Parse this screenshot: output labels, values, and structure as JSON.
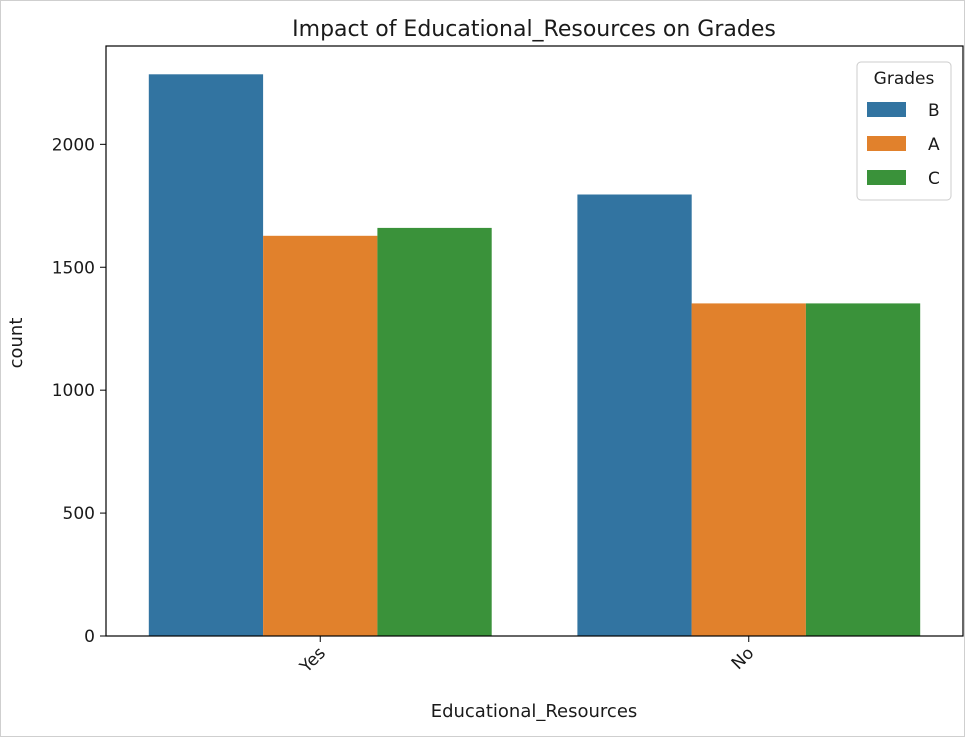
{
  "chart_data": {
    "type": "bar",
    "title": "Impact of Educational_Resources on Grades",
    "xlabel": "Educational_Resources",
    "ylabel": "count",
    "categories": [
      "Yes",
      "No"
    ],
    "series": [
      {
        "name": "B",
        "values": [
          2285,
          1796
        ],
        "color": "#3274a1"
      },
      {
        "name": "A",
        "values": [
          1628,
          1353
        ],
        "color": "#e1812c"
      },
      {
        "name": "C",
        "values": [
          1660,
          1353
        ],
        "color": "#3a923a"
      }
    ],
    "ylim": [
      0,
      2400
    ],
    "yticks": [
      0,
      500,
      1000,
      1500,
      2000
    ],
    "legend": {
      "title": "Grades",
      "position": "top-right"
    },
    "grid": false
  }
}
